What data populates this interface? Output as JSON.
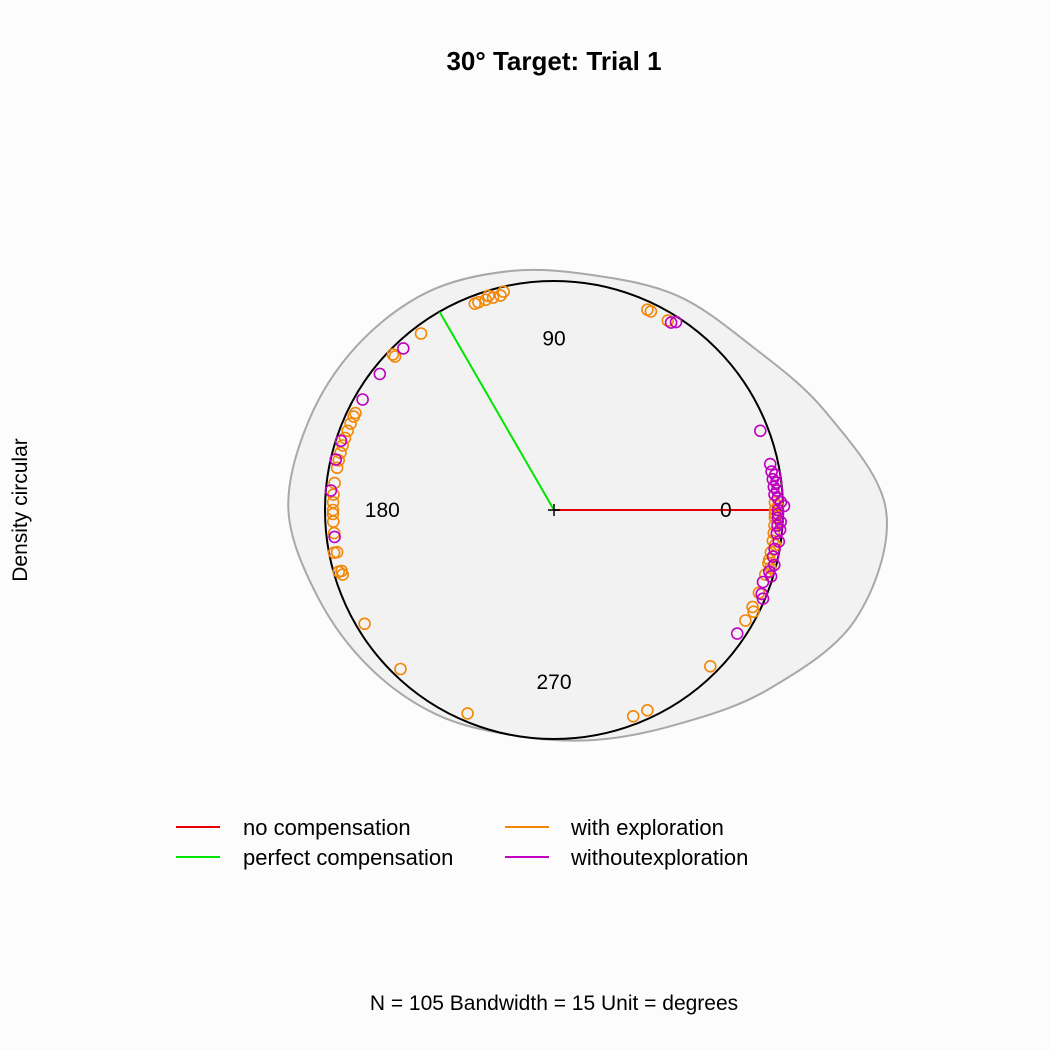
{
  "chart_data": {
    "type": "scatter",
    "title": "30° Target: Trial 1",
    "ylabel": "Density circular",
    "xlabel": "N = 105   Bandwidth = 15  Unit = degrees",
    "degree_labels": [
      {
        "angle": 0,
        "text": "0"
      },
      {
        "angle": 90,
        "text": "90"
      },
      {
        "angle": 180,
        "text": "180"
      },
      {
        "angle": 270,
        "text": "270"
      }
    ],
    "reference_lines": [
      {
        "name": "no compensation",
        "angle_deg": 0,
        "color": "#e60000"
      },
      {
        "name": "perfect compensation",
        "angle_deg": 120,
        "color": "#00e600"
      }
    ],
    "series": [
      {
        "name": "with exploration",
        "color": "#f28705",
        "angles_deg": [
          111,
          110,
          108,
          107,
          106,
          104,
          103,
          136,
          136,
          127,
          65,
          64,
          59,
          169,
          167,
          165,
          163,
          161,
          159,
          157,
          155,
          154,
          173,
          176,
          178,
          180,
          181,
          183,
          186,
          191,
          191,
          196,
          196,
          197,
          211,
          226,
          247,
          2,
          1,
          0,
          359,
          358,
          356,
          354,
          352,
          351,
          349,
          347,
          346,
          345,
          343,
          338,
          334,
          333,
          330,
          315,
          295,
          291
        ]
      },
      {
        "name": "withoutexploration",
        "color": "#c000c0",
        "angles_deg": [
          133,
          142,
          150,
          162,
          167,
          175,
          187,
          58,
          57,
          21,
          12,
          10,
          9,
          8,
          7,
          6,
          5,
          4,
          3,
          2,
          1,
          0,
          359,
          358,
          357,
          356,
          355,
          354,
          352,
          350,
          348,
          346,
          344,
          343,
          341,
          338,
          337,
          326
        ]
      }
    ],
    "density_radius_at_deg": [
      {
        "angle": 0,
        "r": 1.45
      },
      {
        "angle": 20,
        "r": 1.26
      },
      {
        "angle": 40,
        "r": 1.12
      },
      {
        "angle": 60,
        "r": 1.08
      },
      {
        "angle": 80,
        "r": 1.04
      },
      {
        "angle": 100,
        "r": 1.06
      },
      {
        "angle": 120,
        "r": 1.1
      },
      {
        "angle": 140,
        "r": 1.12
      },
      {
        "angle": 160,
        "r": 1.14
      },
      {
        "angle": 180,
        "r": 1.16
      },
      {
        "angle": 200,
        "r": 1.1
      },
      {
        "angle": 220,
        "r": 1.06
      },
      {
        "angle": 240,
        "r": 1.03
      },
      {
        "angle": 260,
        "r": 1.0
      },
      {
        "angle": 280,
        "r": 1.02
      },
      {
        "angle": 300,
        "r": 1.08
      },
      {
        "angle": 320,
        "r": 1.22
      },
      {
        "angle": 340,
        "r": 1.4
      }
    ]
  }
}
